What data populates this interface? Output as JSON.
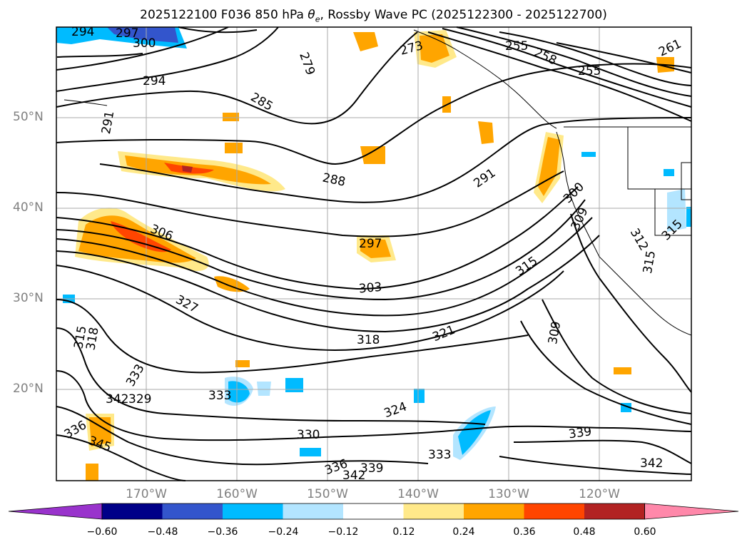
{
  "title": "2025122100 F036 850 hPa θe, Rossby Wave PC (2025122300 - 2025122700)",
  "title_parts": {
    "prefix": "2025122100 F036 850 hPa ",
    "symbol": "θ",
    "subscript": "e",
    "suffix": ", Rossby Wave PC (2025122300 - 2025122700)"
  },
  "lat_labels": [
    "50°N",
    "40°N",
    "30°N",
    "20°N"
  ],
  "lon_labels": [
    "170°W",
    "160°W",
    "150°W",
    "140°W",
    "130°W",
    "120°W"
  ],
  "contour_labels": [
    "294",
    "297",
    "300",
    "294",
    "291",
    "285",
    "279",
    "273",
    "255",
    "258",
    "255",
    "261",
    "288",
    "291",
    "300",
    "309",
    "315",
    "297",
    "303",
    "306",
    "327",
    "321",
    "318",
    "315",
    "318",
    "309",
    "333",
    "342",
    "329",
    "336",
    "345",
    "330",
    "324",
    "333",
    "336",
    "339",
    "342",
    "339",
    "342",
    "312",
    "315"
  ],
  "colorbar": {
    "ticks": [
      "−0.60",
      "−0.48",
      "−0.36",
      "−0.24",
      "−0.12",
      "0.12",
      "0.24",
      "0.36",
      "0.48",
      "0.60"
    ],
    "colors": [
      "#9933cc",
      "#000088",
      "#3355cc",
      "#00bbff",
      "#b3e5ff",
      "#ffffff",
      "#ffe98a",
      "#ffa500",
      "#ff4500",
      "#b22222",
      "#ff88aa"
    ]
  }
}
